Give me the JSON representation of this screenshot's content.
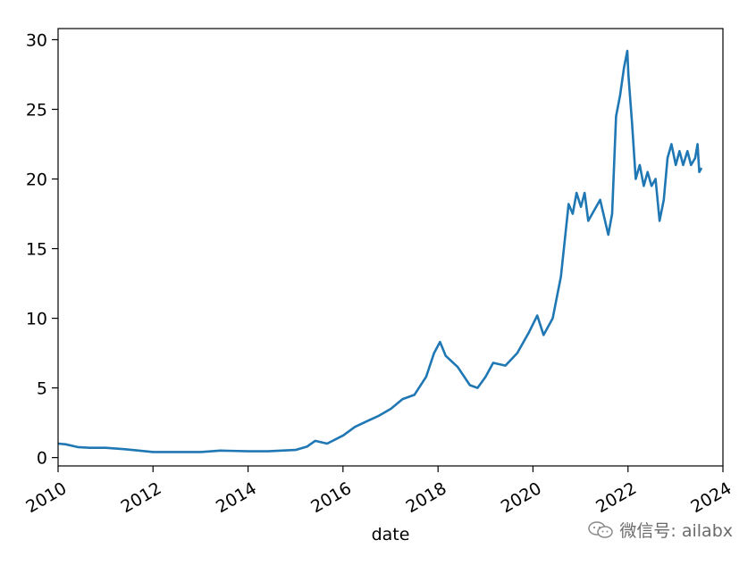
{
  "chart_data": {
    "type": "line",
    "title": "",
    "xlabel": "date",
    "ylabel": "",
    "xlim": [
      "2010-01-01",
      "2024-01-01"
    ],
    "ylim": [
      -0.6,
      30.8
    ],
    "x_ticks": [
      "2010",
      "2012",
      "2014",
      "2016",
      "2018",
      "2020",
      "2022",
      "2024"
    ],
    "y_ticks": [
      0,
      5,
      10,
      15,
      20,
      25,
      30
    ],
    "grid": false,
    "legend": "none",
    "color": "#1f77b4",
    "series": [
      {
        "x": [
          "2010-01-04",
          "2010-03-01",
          "2010-06-01",
          "2010-09-01",
          "2011-01-03",
          "2011-06-01",
          "2012-01-03",
          "2012-06-01",
          "2013-01-02",
          "2013-06-03",
          "2014-01-02",
          "2014-06-02",
          "2015-01-02",
          "2015-04-01",
          "2015-06-01",
          "2015-09-01",
          "2016-01-04",
          "2016-04-01",
          "2016-07-01",
          "2016-10-03",
          "2017-01-03",
          "2017-04-03",
          "2017-07-03",
          "2017-10-02",
          "2017-12-01",
          "2018-01-16",
          "2018-03-01",
          "2018-06-01",
          "2018-09-03",
          "2018-11-01",
          "2019-01-02",
          "2019-03-01",
          "2019-06-03",
          "2019-09-02",
          "2019-12-02",
          "2020-02-03",
          "2020-03-23",
          "2020-06-01",
          "2020-08-03",
          "2020-10-01",
          "2020-11-02",
          "2020-12-01",
          "2021-01-04",
          "2021-02-01",
          "2021-03-01",
          "2021-06-01",
          "2021-08-02",
          "2021-09-01",
          "2021-10-01",
          "2021-11-01",
          "2021-12-01",
          "2021-12-27",
          "2022-01-04",
          "2022-02-01",
          "2022-03-01",
          "2022-04-01",
          "2022-05-02",
          "2022-06-01",
          "2022-07-01",
          "2022-08-01",
          "2022-09-01",
          "2022-10-03",
          "2022-11-01",
          "2022-12-01",
          "2023-01-03",
          "2023-02-01",
          "2023-03-01",
          "2023-04-03",
          "2023-05-01",
          "2023-06-01",
          "2023-06-20",
          "2023-07-03",
          "2023-07-20"
        ],
        "y": [
          1.0,
          0.95,
          0.75,
          0.7,
          0.7,
          0.6,
          0.4,
          0.4,
          0.4,
          0.5,
          0.45,
          0.45,
          0.55,
          0.8,
          1.2,
          1.0,
          1.6,
          2.2,
          2.6,
          3.0,
          3.5,
          4.2,
          4.5,
          5.8,
          7.5,
          8.3,
          7.3,
          6.5,
          5.2,
          5.0,
          5.8,
          6.8,
          6.6,
          7.5,
          9.0,
          10.2,
          8.8,
          10.0,
          13.0,
          18.2,
          17.5,
          19.0,
          18.0,
          19.0,
          17.0,
          18.5,
          16.0,
          17.5,
          24.5,
          26.0,
          28.0,
          29.2,
          27.5,
          24.0,
          20.0,
          21.0,
          19.5,
          20.5,
          19.5,
          20.0,
          17.0,
          18.5,
          21.5,
          22.5,
          21.0,
          22.0,
          21.0,
          22.0,
          21.0,
          21.5,
          22.5,
          20.5,
          20.8
        ]
      }
    ]
  },
  "watermark": {
    "text": "微信号: ailabx",
    "icon": "wechat-icon"
  }
}
